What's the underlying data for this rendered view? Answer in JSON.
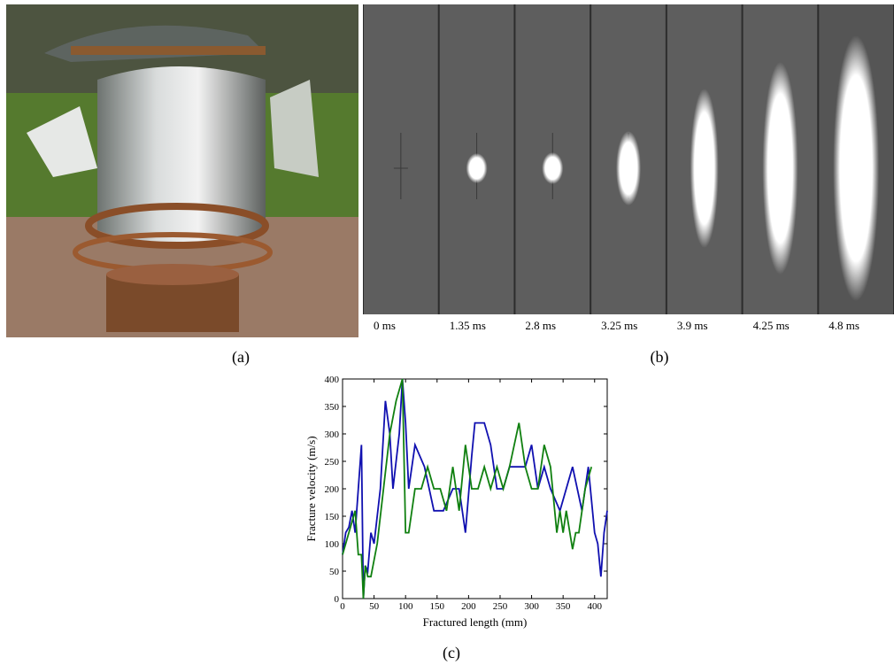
{
  "panels": {
    "a": {
      "label": "(a)"
    },
    "b": {
      "label": "(b)",
      "frames": [
        "0 ms",
        "1.35 ms",
        "2.8 ms",
        "3.25 ms",
        "3.9 ms",
        "4.25 ms",
        "4.8 ms"
      ]
    },
    "c": {
      "label": "(c)"
    }
  },
  "chart_data": {
    "type": "line",
    "xlabel": "Fractured length (mm)",
    "ylabel": "Fracture velocity (m/s)",
    "xlim": [
      0,
      420
    ],
    "ylim": [
      0,
      400
    ],
    "xticks": [
      0,
      50,
      100,
      150,
      200,
      250,
      300,
      350,
      400
    ],
    "yticks": [
      0,
      50,
      100,
      150,
      200,
      250,
      300,
      350,
      400
    ],
    "series": [
      {
        "color": "#1010b0",
        "x": [
          0,
          5,
          10,
          15,
          20,
          25,
          30,
          33,
          36,
          40,
          45,
          50,
          60,
          68,
          75,
          80,
          90,
          95,
          100,
          105,
          115,
          130,
          145,
          160,
          175,
          185,
          195,
          205,
          210,
          225,
          235,
          245,
          255,
          265,
          275,
          290,
          300,
          310,
          320,
          330,
          345,
          355,
          365,
          380,
          390,
          395,
          400,
          405,
          410,
          415,
          420
        ],
        "values": [
          80,
          120,
          130,
          160,
          120,
          200,
          280,
          0,
          60,
          50,
          120,
          100,
          200,
          360,
          300,
          200,
          300,
          400,
          320,
          200,
          280,
          240,
          160,
          160,
          200,
          200,
          120,
          260,
          320,
          320,
          280,
          200,
          200,
          240,
          240,
          240,
          280,
          200,
          240,
          200,
          160,
          200,
          240,
          160,
          240,
          180,
          120,
          100,
          40,
          120,
          160
        ]
      },
      {
        "color": "#108010",
        "x": [
          0,
          10,
          20,
          25,
          30,
          33,
          36,
          40,
          45,
          55,
          65,
          75,
          85,
          95,
          100,
          105,
          115,
          125,
          135,
          145,
          155,
          165,
          175,
          185,
          195,
          205,
          215,
          225,
          235,
          245,
          255,
          265,
          280,
          290,
          300,
          310,
          320,
          330,
          340,
          345,
          350,
          355,
          365,
          370,
          375,
          385,
          395
        ],
        "values": [
          80,
          120,
          160,
          80,
          80,
          0,
          60,
          40,
          40,
          100,
          200,
          300,
          360,
          400,
          120,
          120,
          200,
          200,
          240,
          200,
          200,
          160,
          240,
          160,
          280,
          200,
          200,
          240,
          200,
          240,
          200,
          240,
          320,
          240,
          200,
          200,
          280,
          240,
          120,
          160,
          120,
          160,
          90,
          120,
          120,
          200,
          240
        ]
      }
    ]
  }
}
